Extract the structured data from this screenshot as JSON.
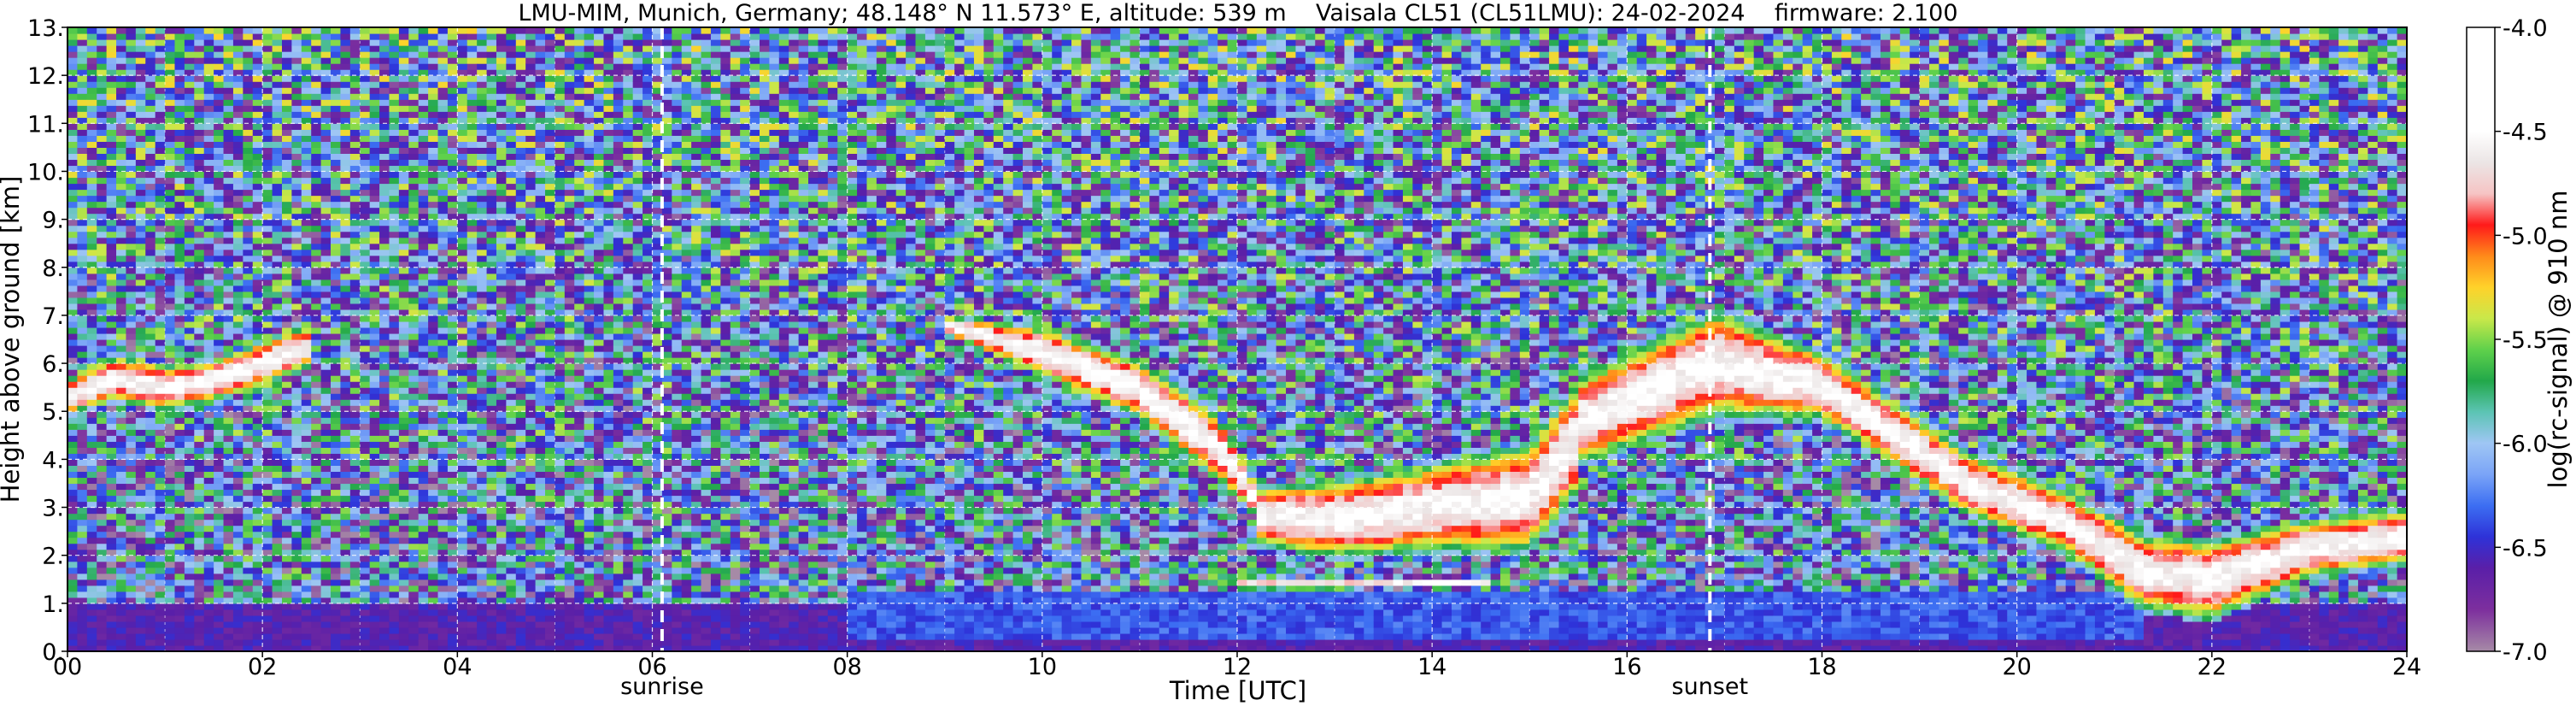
{
  "chart_data": {
    "type": "heatmap",
    "title": "LMU-MIM, Munich, Germany; 48.148° N 11.573° E, altitude: 539 m    Vaisala CL51 (CL51LMU): 24-02-2024    firmware: 2.100",
    "xlabel": "Time [UTC]",
    "ylabel": "Height above ground [km]",
    "colorbar_label": "log(rc-signal) @ 910 nm",
    "xlim": [
      0,
      24
    ],
    "ylim": [
      0,
      13
    ],
    "grid": true,
    "x_tick_labels": [
      "00",
      "02",
      "04",
      "06",
      "08",
      "10",
      "12",
      "14",
      "16",
      "18",
      "20",
      "22",
      "24"
    ],
    "x_tick_values": [
      0,
      2,
      4,
      6,
      8,
      10,
      12,
      14,
      16,
      18,
      20,
      22,
      24
    ],
    "y_tick_labels": [
      "0.",
      "1.",
      "2.",
      "3.",
      "4.",
      "5.",
      "6.",
      "7.",
      "8.",
      "9.",
      "10.",
      "11.",
      "12.",
      "13."
    ],
    "y_tick_values": [
      0,
      1,
      2,
      3,
      4,
      5,
      6,
      7,
      8,
      9,
      10,
      11,
      12,
      13
    ],
    "colorbar_range": [
      -7.0,
      -4.0
    ],
    "colorbar_tick_labels": [
      "-4.0",
      "-4.5",
      "-5.0",
      "-5.5",
      "-6.0",
      "-6.5",
      "-7.0"
    ],
    "colorbar_tick_values": [
      -4.0,
      -4.5,
      -5.0,
      -5.5,
      -6.0,
      -6.5,
      -7.0
    ],
    "colorscale": [
      {
        "v": -7.0,
        "color": "#a68aa6"
      },
      {
        "v": -6.8,
        "color": "#7d2f9e"
      },
      {
        "v": -6.6,
        "color": "#5a1fa8"
      },
      {
        "v": -6.45,
        "color": "#2e32d8"
      },
      {
        "v": -6.3,
        "color": "#3c6ef2"
      },
      {
        "v": -6.15,
        "color": "#7aa4f7"
      },
      {
        "v": -6.0,
        "color": "#9fc6f4"
      },
      {
        "v": -5.85,
        "color": "#5cc4b4"
      },
      {
        "v": -5.7,
        "color": "#22a84a"
      },
      {
        "v": -5.55,
        "color": "#5fd14b"
      },
      {
        "v": -5.4,
        "color": "#c9e84a"
      },
      {
        "v": -5.25,
        "color": "#ffd22a"
      },
      {
        "v": -5.1,
        "color": "#ff8a1a"
      },
      {
        "v": -4.95,
        "color": "#ff1a1a"
      },
      {
        "v": -4.8,
        "color": "#f6c4c4"
      },
      {
        "v": -4.65,
        "color": "#ebe5e5"
      },
      {
        "v": -4.5,
        "color": "#ffffff"
      },
      {
        "v": -4.0,
        "color": "#ffffff"
      }
    ],
    "vlines": [
      {
        "x": 6.1,
        "label": "sunrise"
      },
      {
        "x": 16.85,
        "label": "sunset"
      }
    ],
    "background_noise_top_km": 13,
    "features": [
      {
        "name": "residual layer",
        "x_start": 0,
        "x_end": 24,
        "y_bottom": 0,
        "y_top": 1.0,
        "level": -6.6
      },
      {
        "name": "boundary layer",
        "x_start": 8.0,
        "x_end": 21.3,
        "y_bottom": 0.25,
        "y_top": 1.2,
        "level": -6.35
      },
      {
        "name": "elevated layer night",
        "x": [
          0,
          0.5,
          1.0,
          1.5,
          2.0,
          2.45
        ],
        "y_bottom": [
          4.9,
          5.2,
          5.0,
          5.2,
          5.5,
          5.9
        ],
        "y_top": [
          5.7,
          6.2,
          6.0,
          6.1,
          6.5,
          6.8
        ]
      },
      {
        "name": "descending cloud morning",
        "x": [
          9.0,
          10.0,
          11.0,
          11.8,
          12.2
        ],
        "y_bottom": [
          6.6,
          5.7,
          4.8,
          3.5,
          2.8
        ],
        "y_top": [
          7.0,
          6.8,
          6.1,
          5.0,
          3.5
        ]
      },
      {
        "name": "fragmented clouds midday",
        "x": [
          12.2,
          13.0,
          14.0,
          15.0,
          15.5
        ],
        "y_bottom": [
          2.2,
          1.9,
          2.0,
          2.0,
          3.2
        ],
        "y_top": [
          3.5,
          3.6,
          4.0,
          4.4,
          5.8
        ]
      },
      {
        "name": "low cloud speckles",
        "x": [
          12.0,
          13.0,
          14.0,
          14.6
        ],
        "y_bottom": [
          1.3,
          1.3,
          1.35,
          1.35
        ],
        "y_top": [
          1.5,
          1.5,
          1.5,
          1.5
        ]
      },
      {
        "name": "evening cloud band",
        "x": [
          15.5,
          16.9,
          18.0,
          19.5,
          20.5,
          21.3,
          22.0,
          23.0,
          24.0
        ],
        "y_bottom": [
          3.8,
          4.8,
          4.8,
          2.8,
          2.0,
          0.8,
          0.6,
          1.5,
          1.8
        ],
        "y_top": [
          5.8,
          7.2,
          6.3,
          4.2,
          3.4,
          2.5,
          2.4,
          2.8,
          3.0
        ]
      }
    ]
  }
}
